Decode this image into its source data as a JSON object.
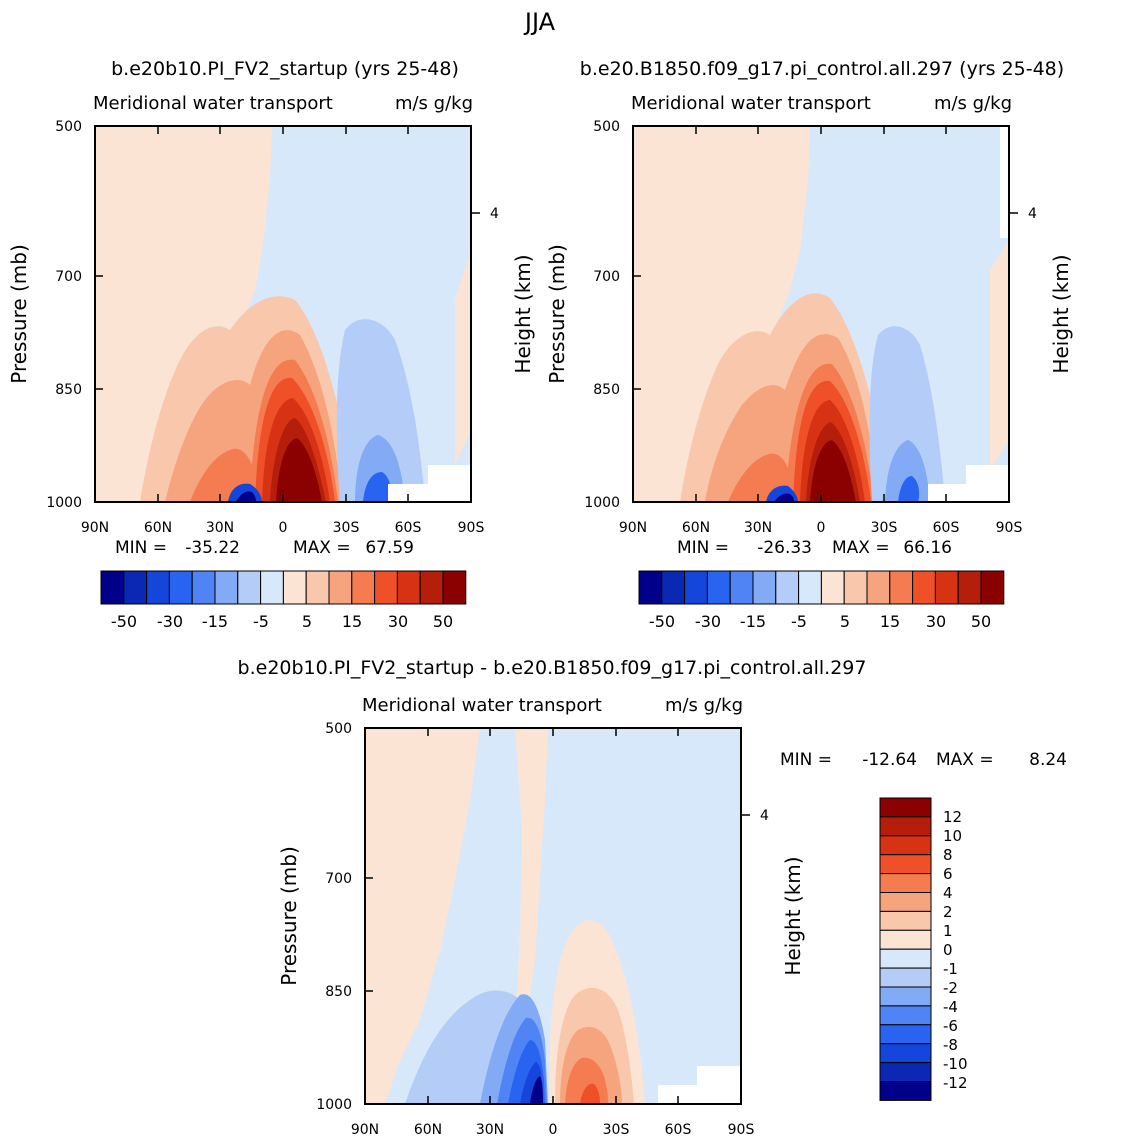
{
  "figure_title": "JJA",
  "chart_data": [
    {
      "type": "heatmap",
      "title": "b.e20b10.PI_FV2_startup (yrs 25-48)",
      "subtitle_left": "Meridional water transport",
      "subtitle_right": "m/s g/kg",
      "ylabel": "Pressure (mb)",
      "y2label": "Height (km)",
      "x_ticks": [
        "90N",
        "60N",
        "30N",
        "0",
        "30S",
        "60S",
        "90S"
      ],
      "y_ticks": [
        "500",
        "700",
        "850",
        "1000"
      ],
      "y2_ticks": [
        "4"
      ],
      "min_label": "MIN =",
      "min_value": "-35.22",
      "max_label": "MAX =",
      "max_value": "67.59",
      "colorbar_labels": [
        "-50",
        "-30",
        "-15",
        "-5",
        "5",
        "15",
        "30",
        "50"
      ]
    },
    {
      "type": "heatmap",
      "title": "b.e20.B1850.f09_g17.pi_control.all.297 (yrs 25-48)",
      "subtitle_left": "Meridional water transport",
      "subtitle_right": "m/s g/kg",
      "ylabel": "Pressure (mb)",
      "y2label": "Height (km)",
      "x_ticks": [
        "90N",
        "60N",
        "30N",
        "0",
        "30S",
        "60S",
        "90S"
      ],
      "y_ticks": [
        "500",
        "700",
        "850",
        "1000"
      ],
      "y2_ticks": [
        "4"
      ],
      "min_label": "MIN =",
      "min_value": "-26.33",
      "max_label": "MAX =",
      "max_value": "66.16",
      "colorbar_labels": [
        "-50",
        "-30",
        "-15",
        "-5",
        "5",
        "15",
        "30",
        "50"
      ]
    },
    {
      "type": "heatmap",
      "title": "b.e20b10.PI_FV2_startup - b.e20.B1850.f09_g17.pi_control.all.297",
      "subtitle_left": "Meridional water transport",
      "subtitle_right": "m/s g/kg",
      "ylabel": "Pressure (mb)",
      "y2label": "Height (km)",
      "x_ticks": [
        "90N",
        "60N",
        "30N",
        "0",
        "30S",
        "60S",
        "90S"
      ],
      "y_ticks": [
        "500",
        "700",
        "850",
        "1000"
      ],
      "y2_ticks": [
        "4"
      ],
      "min_label": "MIN =",
      "min_value": "-12.64",
      "max_label": "MAX =",
      "max_value": "8.24",
      "colorbar_labels": [
        "12",
        "10",
        "8",
        "6",
        "4",
        "2",
        "1",
        "0",
        "-1",
        "-2",
        "-4",
        "-6",
        "-8",
        "-10",
        "-12"
      ]
    }
  ],
  "palette": [
    "#00008b",
    "#0a28b4",
    "#1446dc",
    "#2864f0",
    "#5084f5",
    "#82aaf5",
    "#b4cdf8",
    "#d8e8fb",
    "#fce4d4",
    "#f9c8ac",
    "#f6a47e",
    "#f47c50",
    "#f05028",
    "#d83214",
    "#b41e0a",
    "#8b0000"
  ]
}
